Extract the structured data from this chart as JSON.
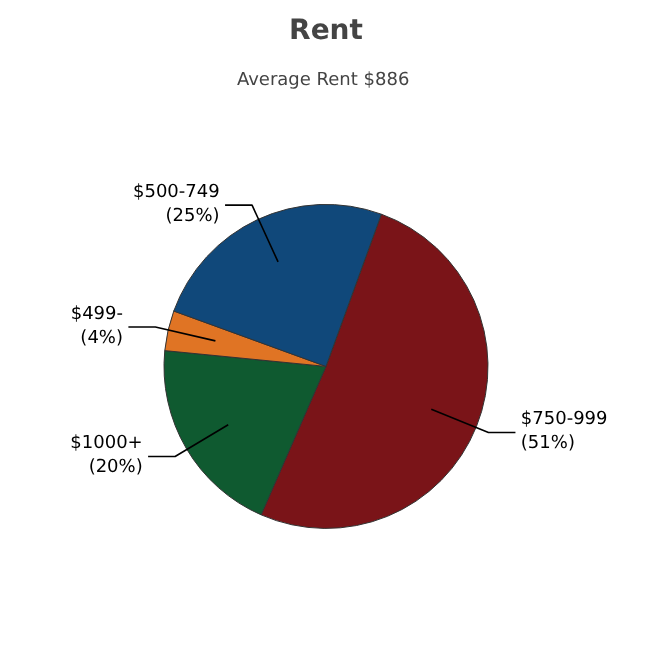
{
  "chart_data": {
    "type": "pie",
    "title": "Rent",
    "subtitle": "Average Rent  $886",
    "categories": [
      "$750-999",
      "$1000+",
      "$499-",
      "$500-749"
    ],
    "values": [
      51,
      20,
      4,
      25
    ],
    "colors": [
      "#7a1418",
      "#0f5a30",
      "#e07424",
      "#10487a"
    ],
    "value_labels": [
      "(51%)",
      "(20%)",
      "(4%)",
      "(25%)"
    ]
  }
}
